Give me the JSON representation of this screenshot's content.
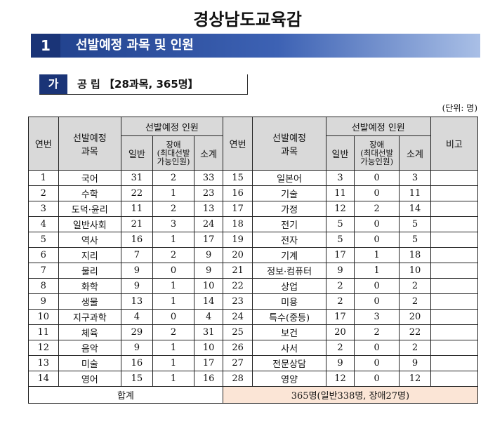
{
  "title": "경상남도교육감",
  "section": {
    "number": "1",
    "title": "선발예정 과목 및 인원"
  },
  "subsection": {
    "label": "가",
    "title": "공 립 【28과목, 365명】"
  },
  "unit": "(단위: 명)",
  "headers": {
    "no": "연번",
    "subject": "선발예정\n과목",
    "quota": "선발예정 인원",
    "general": "일반",
    "disabled": "장애\n(최대선발\n가능인원)",
    "subtotal": "소계",
    "remark": "비고"
  },
  "rows": [
    {
      "left": [
        "1",
        "국어",
        "31",
        "2",
        "33"
      ],
      "right": [
        "15",
        "일본어",
        "3",
        "0",
        "3"
      ]
    },
    {
      "left": [
        "2",
        "수학",
        "22",
        "1",
        "23"
      ],
      "right": [
        "16",
        "기술",
        "11",
        "0",
        "11"
      ]
    },
    {
      "left": [
        "3",
        "도덕·윤리",
        "11",
        "2",
        "13"
      ],
      "right": [
        "17",
        "가정",
        "12",
        "2",
        "14"
      ]
    },
    {
      "left": [
        "4",
        "일반사회",
        "21",
        "3",
        "24"
      ],
      "right": [
        "18",
        "전기",
        "5",
        "0",
        "5"
      ]
    },
    {
      "left": [
        "5",
        "역사",
        "16",
        "1",
        "17"
      ],
      "right": [
        "19",
        "전자",
        "5",
        "0",
        "5"
      ]
    },
    {
      "left": [
        "6",
        "지리",
        "7",
        "2",
        "9"
      ],
      "right": [
        "20",
        "기계",
        "17",
        "1",
        "18"
      ]
    },
    {
      "left": [
        "7",
        "물리",
        "9",
        "0",
        "9"
      ],
      "right": [
        "21",
        "정보·컴퓨터",
        "9",
        "1",
        "10"
      ]
    },
    {
      "left": [
        "8",
        "화학",
        "9",
        "1",
        "10"
      ],
      "right": [
        "22",
        "상업",
        "2",
        "0",
        "2"
      ]
    },
    {
      "left": [
        "9",
        "생물",
        "13",
        "1",
        "14"
      ],
      "right": [
        "23",
        "미용",
        "2",
        "0",
        "2"
      ]
    },
    {
      "left": [
        "10",
        "지구과학",
        "4",
        "0",
        "4"
      ],
      "right": [
        "24",
        "특수(중등)",
        "17",
        "3",
        "20"
      ]
    },
    {
      "left": [
        "11",
        "체육",
        "29",
        "2",
        "31"
      ],
      "right": [
        "25",
        "보건",
        "20",
        "2",
        "22"
      ]
    },
    {
      "left": [
        "12",
        "음악",
        "9",
        "1",
        "10"
      ],
      "right": [
        "26",
        "사서",
        "2",
        "0",
        "2"
      ]
    },
    {
      "left": [
        "13",
        "미술",
        "16",
        "1",
        "17"
      ],
      "right": [
        "27",
        "전문상담",
        "9",
        "0",
        "9"
      ]
    },
    {
      "left": [
        "14",
        "영어",
        "15",
        "1",
        "16"
      ],
      "right": [
        "28",
        "영양",
        "12",
        "0",
        "12"
      ]
    }
  ],
  "total": {
    "label": "합계",
    "value": "365명(일반338명, 장애27명)"
  }
}
